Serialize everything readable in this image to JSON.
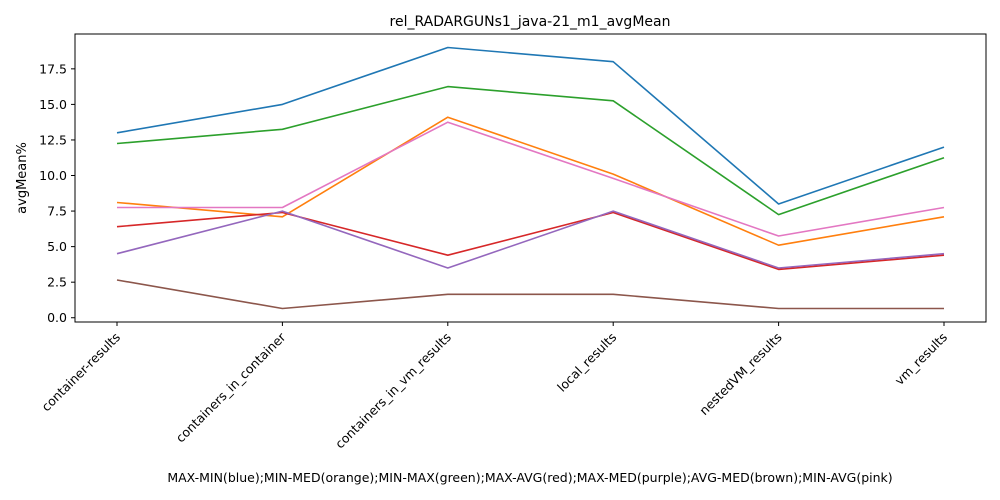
{
  "chart_data": {
    "type": "line",
    "title": "rel_RADARGUNs1_java-21_m1_avgMean",
    "xlabel": "MAX-MIN(blue);MIN-MED(orange);MIN-MAX(green);MAX-AVG(red);MAX-MED(purple);AVG-MED(brown);MIN-AVG(pink)",
    "ylabel": "avgMean%",
    "categories": [
      "container-results",
      "containers_in_container",
      "containers_in_vm_results",
      "local_results",
      "nestedVM_results",
      "vm_results"
    ],
    "ylim": [
      -0.3,
      19.95
    ],
    "yticks": [
      "0.0",
      "2.5",
      "5.0",
      "7.5",
      "10.0",
      "12.5",
      "15.0",
      "17.5"
    ],
    "ytick_values": [
      0,
      2.5,
      5,
      7.5,
      10,
      12.5,
      15,
      17.5
    ],
    "grid": false,
    "series": [
      {
        "color": "#1f77b4",
        "values": [
          13.0,
          15.0,
          19.0,
          18.0,
          8.0,
          12.0
        ]
      },
      {
        "color": "#ff7f0e",
        "values": [
          8.1,
          7.1,
          14.1,
          10.1,
          5.1,
          7.1
        ]
      },
      {
        "color": "#2ca02c",
        "values": [
          12.25,
          13.25,
          16.25,
          15.25,
          7.25,
          11.25
        ]
      },
      {
        "color": "#d62728",
        "values": [
          6.4,
          7.4,
          4.4,
          7.4,
          3.4,
          4.4
        ]
      },
      {
        "color": "#9467bd",
        "values": [
          4.5,
          7.5,
          3.5,
          7.5,
          3.5,
          4.5
        ]
      },
      {
        "color": "#8c564b",
        "values": [
          2.65,
          0.65,
          1.65,
          1.65,
          0.65,
          0.65
        ]
      },
      {
        "color": "#e377c2",
        "values": [
          7.75,
          7.75,
          13.75,
          9.8,
          5.75,
          7.75
        ]
      }
    ]
  }
}
